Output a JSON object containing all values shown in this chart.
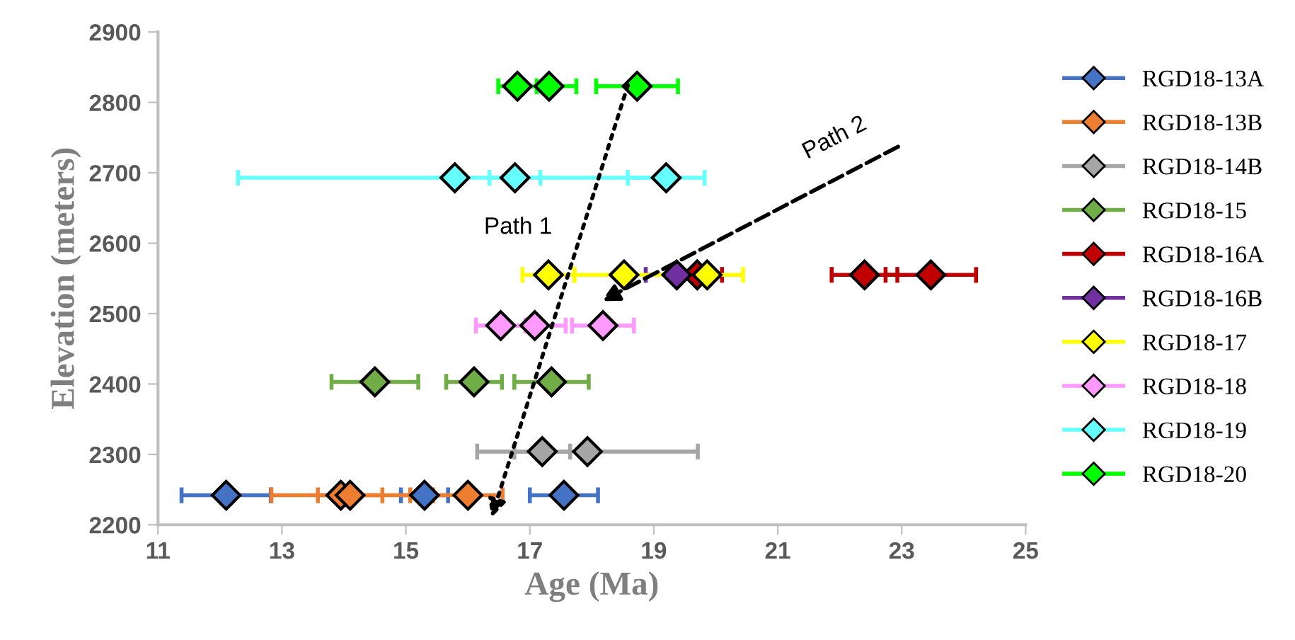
{
  "chart_data": {
    "type": "scatter",
    "xlabel": "Age (Ma)",
    "ylabel": "Elevation (meters)",
    "xlim": [
      11,
      25
    ],
    "xticks": [
      11,
      13,
      15,
      17,
      19,
      21,
      23,
      25
    ],
    "ylim": [
      2200,
      2900
    ],
    "yticks": [
      2200,
      2300,
      2400,
      2500,
      2600,
      2700,
      2800,
      2900
    ],
    "grid": false,
    "legend": "right",
    "marker": "diamond",
    "series": [
      {
        "name": "RGD18-13A",
        "color": "#4472c4",
        "x": [
          12.1,
          15.3,
          17.55
        ],
        "values": [
          2242,
          2242,
          2242
        ],
        "xerrors": [
          0.72,
          0.38,
          0.55
        ]
      },
      {
        "name": "RGD18-13B",
        "color": "#ed7d31",
        "x": [
          13.95,
          14.1,
          16.0
        ],
        "values": [
          2242,
          2242,
          2242
        ],
        "xerrors": [
          1.12,
          0.52,
          0.56
        ]
      },
      {
        "name": "RGD18-14B",
        "color": "#a5a5a5",
        "x": [
          17.2,
          17.93
        ],
        "values": [
          2304,
          2304
        ],
        "xerrors": [
          0.45,
          1.78
        ]
      },
      {
        "name": "RGD18-15",
        "color": "#70ad47",
        "x": [
          14.5,
          16.1,
          17.35
        ],
        "values": [
          2403,
          2403,
          2403
        ],
        "xerrors": [
          0.7,
          0.45,
          0.6
        ]
      },
      {
        "name": "RGD18-16A",
        "color": "#c00000",
        "x": [
          19.7,
          22.4,
          23.47
        ],
        "values": [
          2555,
          2555,
          2555
        ],
        "xerrors": [
          0.4,
          0.53,
          0.73
        ]
      },
      {
        "name": "RGD18-16B",
        "color": "#7030a0",
        "x": [
          19.37
        ],
        "values": [
          2555
        ],
        "xerrors": [
          0.5
        ]
      },
      {
        "name": "RGD18-17",
        "color": "#ffff00",
        "x": [
          17.3,
          18.52,
          19.86
        ],
        "values": [
          2555,
          2555,
          2555
        ],
        "xerrors": [
          0.42,
          0.8,
          0.58
        ]
      },
      {
        "name": "RGD18-18",
        "color": "#ff99ff",
        "x": [
          16.53,
          17.08,
          18.18
        ],
        "values": [
          2483,
          2483,
          2483
        ],
        "xerrors": [
          0.4,
          0.5,
          0.5
        ]
      },
      {
        "name": "RGD18-19",
        "color": "#66ffff",
        "x": [
          15.79,
          16.76,
          19.2
        ],
        "values": [
          2693,
          2693,
          2693
        ],
        "xerrors": [
          3.5,
          0.41,
          0.62
        ]
      },
      {
        "name": "RGD18-20",
        "color": "#00ff00",
        "x": [
          16.8,
          17.31,
          18.73
        ],
        "values": [
          2823,
          2823,
          2823
        ],
        "xerrors": [
          0.31,
          0.44,
          0.66
        ]
      }
    ],
    "annotations": [
      "Path 1",
      "Path 2"
    ]
  }
}
